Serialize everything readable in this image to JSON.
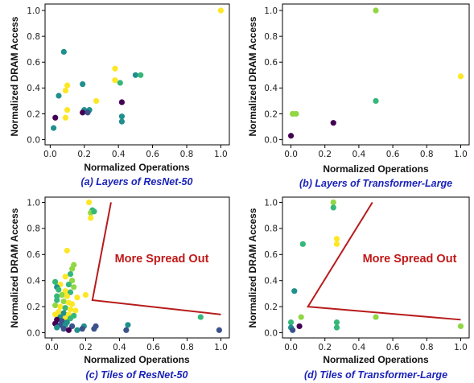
{
  "colors": {
    "dark_purple": "#440154",
    "blue": "#3b528b",
    "teal": "#21908d",
    "green": "#35b779",
    "light_green": "#90d743",
    "yellow": "#fde725",
    "annotation_red": "#b71c1c",
    "caption_blue": "#1a22b8"
  },
  "chart_data": [
    {
      "type": "scatter",
      "caption": "(a) Layers of ResNet-50",
      "xlabel": "Normalized Operations",
      "ylabel": "Normalized DRAM Access",
      "xlim": [
        -0.03,
        1.05
      ],
      "ylim": [
        -0.04,
        1.05
      ],
      "xticks": [
        "0.0",
        "0.2",
        "0.4",
        "0.6",
        "0.8",
        "1.0"
      ],
      "yticks": [
        "0.0",
        "0.2",
        "0.4",
        "0.6",
        "0.8",
        "1.0"
      ],
      "grid": false,
      "points": [
        {
          "x": 1.0,
          "y": 1.0,
          "c": "yellow"
        },
        {
          "x": 0.08,
          "y": 0.68,
          "c": "teal"
        },
        {
          "x": 0.38,
          "y": 0.55,
          "c": "yellow"
        },
        {
          "x": 0.5,
          "y": 0.5,
          "c": "teal"
        },
        {
          "x": 0.53,
          "y": 0.5,
          "c": "green"
        },
        {
          "x": 0.38,
          "y": 0.46,
          "c": "yellow"
        },
        {
          "x": 0.41,
          "y": 0.44,
          "c": "green"
        },
        {
          "x": 0.19,
          "y": 0.43,
          "c": "teal"
        },
        {
          "x": 0.1,
          "y": 0.42,
          "c": "yellow"
        },
        {
          "x": 0.09,
          "y": 0.38,
          "c": "yellow"
        },
        {
          "x": 0.05,
          "y": 0.34,
          "c": "teal"
        },
        {
          "x": 0.27,
          "y": 0.3,
          "c": "yellow"
        },
        {
          "x": 0.42,
          "y": 0.29,
          "c": "dark_purple"
        },
        {
          "x": 0.1,
          "y": 0.23,
          "c": "yellow"
        },
        {
          "x": 0.2,
          "y": 0.23,
          "c": "teal"
        },
        {
          "x": 0.23,
          "y": 0.23,
          "c": "teal"
        },
        {
          "x": 0.19,
          "y": 0.21,
          "c": "dark_purple"
        },
        {
          "x": 0.22,
          "y": 0.21,
          "c": "blue"
        },
        {
          "x": 0.42,
          "y": 0.18,
          "c": "teal"
        },
        {
          "x": 0.09,
          "y": 0.17,
          "c": "yellow"
        },
        {
          "x": 0.03,
          "y": 0.17,
          "c": "dark_purple"
        },
        {
          "x": 0.42,
          "y": 0.14,
          "c": "teal"
        },
        {
          "x": 0.02,
          "y": 0.09,
          "c": "teal"
        }
      ]
    },
    {
      "type": "scatter",
      "caption": "(b) Layers of Transformer-Large",
      "xlabel": "Normalized Operations",
      "ylabel": "Normalized DRAM Access",
      "xlim": [
        -0.05,
        1.05
      ],
      "ylim": [
        -0.04,
        1.05
      ],
      "xticks": [
        "0.0",
        "0.2",
        "0.4",
        "0.6",
        "0.8",
        "1.0"
      ],
      "yticks": [
        "0.0",
        "0.2",
        "0.4",
        "0.6",
        "0.8",
        "1.0"
      ],
      "grid": false,
      "points": [
        {
          "x": 0.5,
          "y": 1.0,
          "c": "light_green"
        },
        {
          "x": 1.0,
          "y": 0.49,
          "c": "yellow"
        },
        {
          "x": 0.5,
          "y": 0.3,
          "c": "green"
        },
        {
          "x": 0.01,
          "y": 0.2,
          "c": "light_green"
        },
        {
          "x": 0.03,
          "y": 0.2,
          "c": "light_green"
        },
        {
          "x": 0.25,
          "y": 0.13,
          "c": "dark_purple"
        },
        {
          "x": 0.0,
          "y": 0.03,
          "c": "dark_purple"
        }
      ]
    },
    {
      "type": "scatter",
      "caption": "(c) Tiles of ResNet-50",
      "xlabel": "Normalized Operations",
      "ylabel": "Normalized DRAM Access",
      "annotation": "More Spread Out",
      "xlim": [
        -0.04,
        1.05
      ],
      "ylim": [
        -0.04,
        1.04
      ],
      "xticks": [
        "0.0",
        "0.2",
        "0.4",
        "0.6",
        "0.8",
        "1.0"
      ],
      "yticks": [
        "0.0",
        "0.2",
        "0.4",
        "0.6",
        "0.8",
        "1.0"
      ],
      "grid": false,
      "annotation_line": [
        [
          0.35,
          1.0
        ],
        [
          0.24,
          0.25
        ],
        [
          1.0,
          0.14
        ]
      ],
      "points": [
        {
          "x": 0.22,
          "y": 1.0,
          "c": "yellow"
        },
        {
          "x": 0.24,
          "y": 0.94,
          "c": "green"
        },
        {
          "x": 0.23,
          "y": 0.92,
          "c": "light_green"
        },
        {
          "x": 0.25,
          "y": 0.93,
          "c": "green"
        },
        {
          "x": 0.23,
          "y": 0.88,
          "c": "yellow"
        },
        {
          "x": 0.09,
          "y": 0.63,
          "c": "yellow"
        },
        {
          "x": 0.13,
          "y": 0.52,
          "c": "light_green"
        },
        {
          "x": 0.12,
          "y": 0.49,
          "c": "light_green"
        },
        {
          "x": 0.11,
          "y": 0.45,
          "c": "green"
        },
        {
          "x": 0.08,
          "y": 0.43,
          "c": "yellow"
        },
        {
          "x": 0.12,
          "y": 0.4,
          "c": "light_green"
        },
        {
          "x": 0.02,
          "y": 0.39,
          "c": "green"
        },
        {
          "x": 0.05,
          "y": 0.37,
          "c": "yellow"
        },
        {
          "x": 0.1,
          "y": 0.37,
          "c": "green"
        },
        {
          "x": 0.03,
          "y": 0.35,
          "c": "teal"
        },
        {
          "x": 0.13,
          "y": 0.35,
          "c": "light_green"
        },
        {
          "x": 0.04,
          "y": 0.33,
          "c": "green"
        },
        {
          "x": 0.08,
          "y": 0.32,
          "c": "yellow"
        },
        {
          "x": 0.11,
          "y": 0.31,
          "c": "green"
        },
        {
          "x": 0.2,
          "y": 0.29,
          "c": "yellow"
        },
        {
          "x": 0.06,
          "y": 0.29,
          "c": "light_green"
        },
        {
          "x": 0.03,
          "y": 0.28,
          "c": "green"
        },
        {
          "x": 0.09,
          "y": 0.28,
          "c": "yellow"
        },
        {
          "x": 0.15,
          "y": 0.27,
          "c": "yellow"
        },
        {
          "x": 0.03,
          "y": 0.25,
          "c": "green"
        },
        {
          "x": 0.07,
          "y": 0.24,
          "c": "light_green"
        },
        {
          "x": 0.1,
          "y": 0.23,
          "c": "yellow"
        },
        {
          "x": 0.12,
          "y": 0.22,
          "c": "yellow"
        },
        {
          "x": 0.02,
          "y": 0.21,
          "c": "light_green"
        },
        {
          "x": 0.05,
          "y": 0.2,
          "c": "yellow"
        },
        {
          "x": 0.08,
          "y": 0.19,
          "c": "green"
        },
        {
          "x": 0.11,
          "y": 0.18,
          "c": "yellow"
        },
        {
          "x": 0.14,
          "y": 0.17,
          "c": "yellow"
        },
        {
          "x": 0.04,
          "y": 0.16,
          "c": "yellow"
        },
        {
          "x": 0.07,
          "y": 0.15,
          "c": "teal"
        },
        {
          "x": 0.1,
          "y": 0.14,
          "c": "yellow"
        },
        {
          "x": 0.02,
          "y": 0.14,
          "c": "yellow"
        },
        {
          "x": 0.13,
          "y": 0.13,
          "c": "green"
        },
        {
          "x": 0.05,
          "y": 0.12,
          "c": "teal"
        },
        {
          "x": 0.08,
          "y": 0.11,
          "c": "yellow"
        },
        {
          "x": 0.11,
          "y": 0.11,
          "c": "green"
        },
        {
          "x": 0.03,
          "y": 0.1,
          "c": "dark_purple"
        },
        {
          "x": 0.06,
          "y": 0.09,
          "c": "blue"
        },
        {
          "x": 0.09,
          "y": 0.08,
          "c": "teal"
        },
        {
          "x": 0.02,
          "y": 0.07,
          "c": "dark_purple"
        },
        {
          "x": 0.05,
          "y": 0.06,
          "c": "blue"
        },
        {
          "x": 0.08,
          "y": 0.06,
          "c": "teal"
        },
        {
          "x": 0.12,
          "y": 0.05,
          "c": "blue"
        },
        {
          "x": 0.03,
          "y": 0.04,
          "c": "teal"
        },
        {
          "x": 0.07,
          "y": 0.03,
          "c": "blue"
        },
        {
          "x": 0.1,
          "y": 0.02,
          "c": "dark_purple"
        },
        {
          "x": 0.15,
          "y": 0.02,
          "c": "teal"
        },
        {
          "x": 0.19,
          "y": 0.05,
          "c": "teal"
        },
        {
          "x": 0.18,
          "y": 0.03,
          "c": "blue"
        },
        {
          "x": 0.25,
          "y": 0.03,
          "c": "blue"
        },
        {
          "x": 0.26,
          "y": 0.05,
          "c": "blue"
        },
        {
          "x": 0.45,
          "y": 0.06,
          "c": "teal"
        },
        {
          "x": 0.44,
          "y": 0.02,
          "c": "blue"
        },
        {
          "x": 0.88,
          "y": 0.12,
          "c": "green"
        },
        {
          "x": 0.99,
          "y": 0.02,
          "c": "blue"
        }
      ]
    },
    {
      "type": "scatter",
      "caption": "(d) Tiles of Transformer-Large",
      "xlabel": "Normalized Operations",
      "ylabel": "Normalized DRAM Access",
      "annotation": "More Spread Out",
      "xlim": [
        -0.05,
        1.05
      ],
      "ylim": [
        -0.04,
        1.04
      ],
      "xticks": [
        "0.0",
        "0.2",
        "0.4",
        "0.6",
        "0.8",
        "1.0"
      ],
      "yticks": [
        "0.0",
        "0.2",
        "0.4",
        "0.6",
        "0.8",
        "1.0"
      ],
      "grid": false,
      "annotation_line": [
        [
          0.48,
          1.0
        ],
        [
          0.1,
          0.2
        ],
        [
          1.0,
          0.1
        ]
      ],
      "points": [
        {
          "x": 0.25,
          "y": 1.0,
          "c": "light_green"
        },
        {
          "x": 0.25,
          "y": 0.96,
          "c": "green"
        },
        {
          "x": 0.27,
          "y": 0.72,
          "c": "yellow"
        },
        {
          "x": 0.27,
          "y": 0.68,
          "c": "yellow"
        },
        {
          "x": 0.07,
          "y": 0.68,
          "c": "green"
        },
        {
          "x": 0.02,
          "y": 0.32,
          "c": "teal"
        },
        {
          "x": 0.06,
          "y": 0.12,
          "c": "light_green"
        },
        {
          "x": 0.5,
          "y": 0.12,
          "c": "light_green"
        },
        {
          "x": 0.27,
          "y": 0.08,
          "c": "green"
        },
        {
          "x": 0.27,
          "y": 0.04,
          "c": "green"
        },
        {
          "x": 0.0,
          "y": 0.08,
          "c": "green"
        },
        {
          "x": 0.0,
          "y": 0.04,
          "c": "teal"
        },
        {
          "x": 0.05,
          "y": 0.05,
          "c": "dark_purple"
        },
        {
          "x": 0.01,
          "y": 0.02,
          "c": "blue"
        },
        {
          "x": 1.0,
          "y": 0.05,
          "c": "light_green"
        }
      ]
    }
  ]
}
